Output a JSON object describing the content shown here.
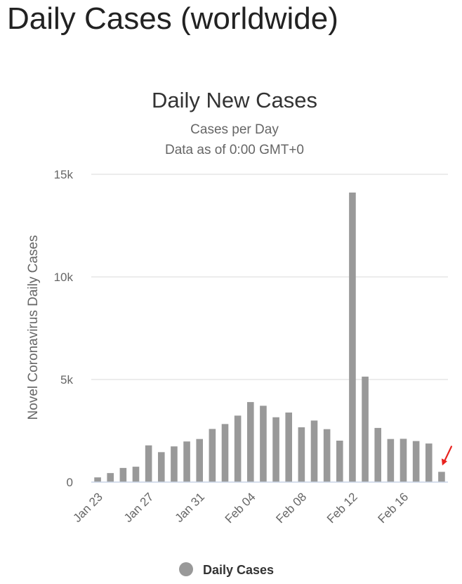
{
  "page": {
    "heading": "Daily Cases (worldwide)"
  },
  "colors": {
    "bar": "#999999",
    "gridline": "#e6e6e6",
    "baseline": "#c8d4e6",
    "annotation_arrow": "#e8231f"
  },
  "chart_data": {
    "type": "bar",
    "title": "Daily New Cases",
    "subtitle": [
      "Cases per Day",
      "Data as of 0:00 GMT+0"
    ],
    "ylabel": "Novel Coronavirus Daily Cases",
    "xlabel": "",
    "ylim": [
      0,
      15000
    ],
    "y_ticks": [
      {
        "value": 0,
        "label": "0"
      },
      {
        "value": 5000,
        "label": "5k"
      },
      {
        "value": 10000,
        "label": "10k"
      },
      {
        "value": 15000,
        "label": "15k"
      }
    ],
    "grid": true,
    "legend_position": "bottom-center",
    "categories": [
      "Jan 23",
      "Jan 24",
      "Jan 25",
      "Jan 26",
      "Jan 27",
      "Jan 28",
      "Jan 29",
      "Jan 30",
      "Jan 31",
      "Feb 01",
      "Feb 02",
      "Feb 03",
      "Feb 04",
      "Feb 05",
      "Feb 06",
      "Feb 07",
      "Feb 08",
      "Feb 09",
      "Feb 10",
      "Feb 11",
      "Feb 12",
      "Feb 13",
      "Feb 14",
      "Feb 15",
      "Feb 16",
      "Feb 17",
      "Feb 18",
      "Feb 19"
    ],
    "x_tick_labels": [
      {
        "index": 0,
        "label": "Jan 23"
      },
      {
        "index": 4,
        "label": "Jan 27"
      },
      {
        "index": 8,
        "label": "Jan 31"
      },
      {
        "index": 12,
        "label": "Feb 04"
      },
      {
        "index": 16,
        "label": "Feb 08"
      },
      {
        "index": 20,
        "label": "Feb 12"
      },
      {
        "index": 24,
        "label": "Feb 16"
      }
    ],
    "series": [
      {
        "name": "Daily Cases",
        "values": [
          230,
          440,
          690,
          750,
          1790,
          1460,
          1740,
          1980,
          2100,
          2590,
          2830,
          3240,
          3900,
          3720,
          3160,
          3390,
          2670,
          3000,
          2580,
          2020,
          14110,
          5140,
          2640,
          2100,
          2110,
          2000,
          1880,
          500
        ]
      }
    ],
    "annotations": [
      {
        "type": "arrow",
        "category_index": 27,
        "color": "#e8231f"
      }
    ]
  }
}
